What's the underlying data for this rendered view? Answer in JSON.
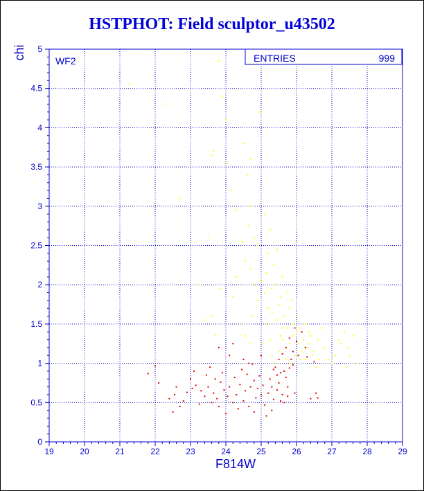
{
  "title": "HSTPHOT: Field sculptor_u43502",
  "colors": {
    "axis": "#0000cc",
    "grid": "#0000cc",
    "title": "#0000d8",
    "yellow_points": "#ffff00",
    "red_points": "#dd0000"
  },
  "stats_box": {
    "label": "ENTRIES",
    "value": "999"
  },
  "panel_label": "WF2",
  "chart_data": {
    "type": "scatter",
    "title": "HSTPHOT: Field sculptor_u43502",
    "xlabel": "F814W",
    "ylabel": "chi",
    "xlim": [
      19,
      29
    ],
    "ylim": [
      0,
      5
    ],
    "x_ticks": [
      "19",
      "20",
      "21",
      "22",
      "23",
      "24",
      "25",
      "26",
      "27",
      "28",
      "29"
    ],
    "y_ticks": [
      "0",
      "0.5",
      "1",
      "1.5",
      "2",
      "2.5",
      "3",
      "3.5",
      "4",
      "4.5",
      "5"
    ],
    "grid": true,
    "entries": 999,
    "series": [
      {
        "color": "yellow",
        "points": [
          [
            21.3,
            4.55
          ],
          [
            22.3,
            4.3
          ],
          [
            23.6,
            3.65
          ],
          [
            23.65,
            3.7
          ],
          [
            23.8,
            4.85
          ],
          [
            23.9,
            4.4
          ],
          [
            24.0,
            4.1
          ],
          [
            24.5,
            3.8
          ],
          [
            24.7,
            3.6
          ],
          [
            24.95,
            4.2
          ],
          [
            24.6,
            3.4
          ],
          [
            24.15,
            3.2
          ],
          [
            24.3,
            2.95
          ],
          [
            24.7,
            3.0
          ],
          [
            25.1,
            2.9
          ],
          [
            24.65,
            2.75
          ],
          [
            24.8,
            2.6
          ],
          [
            24.55,
            2.3
          ],
          [
            24.9,
            2.5
          ],
          [
            25.2,
            2.4
          ],
          [
            25.35,
            2.25
          ],
          [
            25.45,
            2.45
          ],
          [
            24.7,
            2.2
          ],
          [
            24.8,
            2.0
          ],
          [
            25.0,
            2.05
          ],
          [
            25.1,
            1.9
          ],
          [
            25.3,
            1.95
          ],
          [
            25.15,
            2.15
          ],
          [
            25.4,
            2.0
          ],
          [
            25.55,
            1.85
          ],
          [
            25.6,
            2.1
          ],
          [
            24.9,
            1.8
          ],
          [
            25.2,
            1.7
          ],
          [
            25.3,
            1.65
          ],
          [
            25.45,
            1.55
          ],
          [
            25.5,
            1.75
          ],
          [
            25.65,
            1.6
          ],
          [
            25.75,
            1.45
          ],
          [
            25.8,
            1.7
          ],
          [
            25.9,
            1.5
          ],
          [
            26.0,
            1.6
          ],
          [
            26.1,
            1.45
          ],
          [
            26.2,
            1.3
          ],
          [
            26.3,
            1.2
          ],
          [
            26.4,
            1.35
          ],
          [
            26.5,
            1.15
          ],
          [
            25.6,
            1.3
          ],
          [
            25.7,
            1.2
          ],
          [
            25.8,
            1.25
          ],
          [
            25.95,
            1.1
          ],
          [
            26.05,
            1.25
          ],
          [
            26.15,
            1.15
          ],
          [
            26.25,
            1.05
          ],
          [
            26.35,
            1.25
          ],
          [
            26.45,
            1.1
          ],
          [
            26.6,
            1.3
          ],
          [
            26.7,
            1.45
          ],
          [
            26.8,
            1.2
          ],
          [
            27.0,
            1.0
          ],
          [
            27.1,
            1.1
          ],
          [
            27.2,
            1.3
          ],
          [
            27.35,
            1.4
          ],
          [
            27.45,
            1.2
          ],
          [
            27.5,
            1.1
          ],
          [
            27.6,
            1.35
          ],
          [
            27.7,
            1.0
          ],
          [
            27.4,
            0.95
          ],
          [
            27.25,
            1.25
          ],
          [
            26.9,
            1.05
          ],
          [
            25.7,
            1.05
          ],
          [
            25.85,
            1.0
          ],
          [
            25.5,
            1.15
          ],
          [
            25.4,
            1.0
          ],
          [
            25.3,
            1.1
          ],
          [
            25.25,
            1.3
          ],
          [
            25.05,
            1.25
          ],
          [
            24.7,
            1.25
          ],
          [
            24.55,
            1.35
          ],
          [
            26.55,
            0.95
          ],
          [
            26.65,
            1.05
          ],
          [
            25.9,
            1.35
          ],
          [
            26.0,
            1.4
          ],
          [
            26.1,
            1.05
          ],
          [
            25.6,
            1.45
          ],
          [
            25.75,
            1.9
          ],
          [
            25.85,
            1.8
          ],
          [
            25.25,
            2.7
          ],
          [
            24.45,
            2.55
          ],
          [
            24.3,
            2.1
          ],
          [
            24.2,
            1.85
          ],
          [
            23.85,
            1.95
          ],
          [
            23.6,
            1.6
          ],
          [
            23.4,
            1.55
          ],
          [
            23.25,
            2.0
          ],
          [
            23.7,
            1.35
          ],
          [
            22.7,
            3.1
          ],
          [
            23.5,
            2.6
          ],
          [
            24.05,
            3.55
          ],
          [
            24.4,
            1.5
          ],
          [
            24.75,
            1.6
          ],
          [
            25.55,
            1.35
          ],
          [
            25.15,
            1.5
          ],
          [
            26.25,
            1.5
          ],
          [
            26.35,
            1.4
          ]
        ]
      },
      {
        "color": "red",
        "points": [
          [
            21.8,
            0.87
          ],
          [
            22.0,
            0.97
          ],
          [
            22.1,
            0.75
          ],
          [
            22.4,
            0.55
          ],
          [
            22.5,
            0.38
          ],
          [
            22.55,
            0.6
          ],
          [
            22.6,
            0.7
          ],
          [
            22.8,
            0.52
          ],
          [
            22.9,
            0.63
          ],
          [
            23.0,
            0.8
          ],
          [
            23.05,
            0.68
          ],
          [
            23.15,
            0.72
          ],
          [
            23.25,
            0.48
          ],
          [
            23.3,
            0.65
          ],
          [
            23.4,
            0.58
          ],
          [
            23.45,
            0.85
          ],
          [
            23.5,
            0.7
          ],
          [
            23.6,
            0.5
          ],
          [
            23.65,
            0.62
          ],
          [
            23.7,
            0.8
          ],
          [
            23.75,
            0.55
          ],
          [
            23.8,
            0.45
          ],
          [
            23.85,
            0.76
          ],
          [
            23.9,
            0.88
          ],
          [
            23.95,
            0.66
          ],
          [
            24.0,
            0.36
          ],
          [
            24.05,
            0.58
          ],
          [
            24.1,
            0.7
          ],
          [
            24.2,
            0.5
          ],
          [
            24.25,
            0.82
          ],
          [
            24.3,
            0.6
          ],
          [
            24.4,
            0.73
          ],
          [
            24.45,
            0.92
          ],
          [
            24.5,
            0.52
          ],
          [
            24.55,
            0.65
          ],
          [
            24.6,
            0.86
          ],
          [
            24.65,
            0.45
          ],
          [
            24.7,
            0.7
          ],
          [
            24.75,
            0.99
          ],
          [
            24.8,
            0.78
          ],
          [
            24.85,
            0.56
          ],
          [
            24.9,
            0.68
          ],
          [
            24.95,
            0.84
          ],
          [
            25.0,
            0.6
          ],
          [
            25.05,
            0.72
          ],
          [
            25.1,
            0.47
          ],
          [
            25.15,
            0.33
          ],
          [
            25.2,
            0.62
          ],
          [
            25.25,
            0.8
          ],
          [
            25.3,
            0.7
          ],
          [
            25.35,
            0.54
          ],
          [
            25.4,
            0.95
          ],
          [
            25.45,
            0.66
          ],
          [
            25.5,
            0.75
          ],
          [
            25.55,
            0.88
          ],
          [
            25.6,
            0.6
          ],
          [
            25.65,
            0.5
          ],
          [
            25.7,
            0.82
          ],
          [
            25.75,
            0.7
          ],
          [
            25.8,
            0.94
          ],
          [
            25.85,
            1.05
          ],
          [
            25.9,
            1.15
          ],
          [
            25.95,
            0.62
          ],
          [
            26.0,
            1.28
          ],
          [
            25.5,
            1.05
          ],
          [
            25.6,
            1.12
          ],
          [
            25.7,
            1.2
          ],
          [
            25.8,
            1.32
          ],
          [
            24.65,
            1.0
          ],
          [
            24.2,
            1.25
          ],
          [
            23.8,
            1.2
          ],
          [
            24.5,
            1.05
          ],
          [
            24.1,
            1.1
          ],
          [
            25.0,
            1.1
          ],
          [
            25.3,
            0.4
          ],
          [
            24.8,
            0.38
          ],
          [
            23.1,
            0.9
          ],
          [
            22.7,
            0.45
          ],
          [
            23.55,
            0.95
          ],
          [
            24.35,
            0.42
          ],
          [
            25.95,
            1.45
          ],
          [
            26.15,
            1.4
          ],
          [
            26.25,
            1.2
          ],
          [
            26.05,
            1.1
          ],
          [
            26.3,
            1.08
          ],
          [
            25.9,
            0.98
          ],
          [
            26.55,
            0.62
          ],
          [
            26.6,
            0.56
          ],
          [
            26.5,
            1.02
          ],
          [
            26.4,
            0.55
          ],
          [
            25.75,
            0.58
          ],
          [
            25.65,
            0.9
          ],
          [
            25.55,
            0.52
          ],
          [
            25.45,
            0.85
          ],
          [
            25.35,
            0.92
          ]
        ]
      }
    ]
  }
}
